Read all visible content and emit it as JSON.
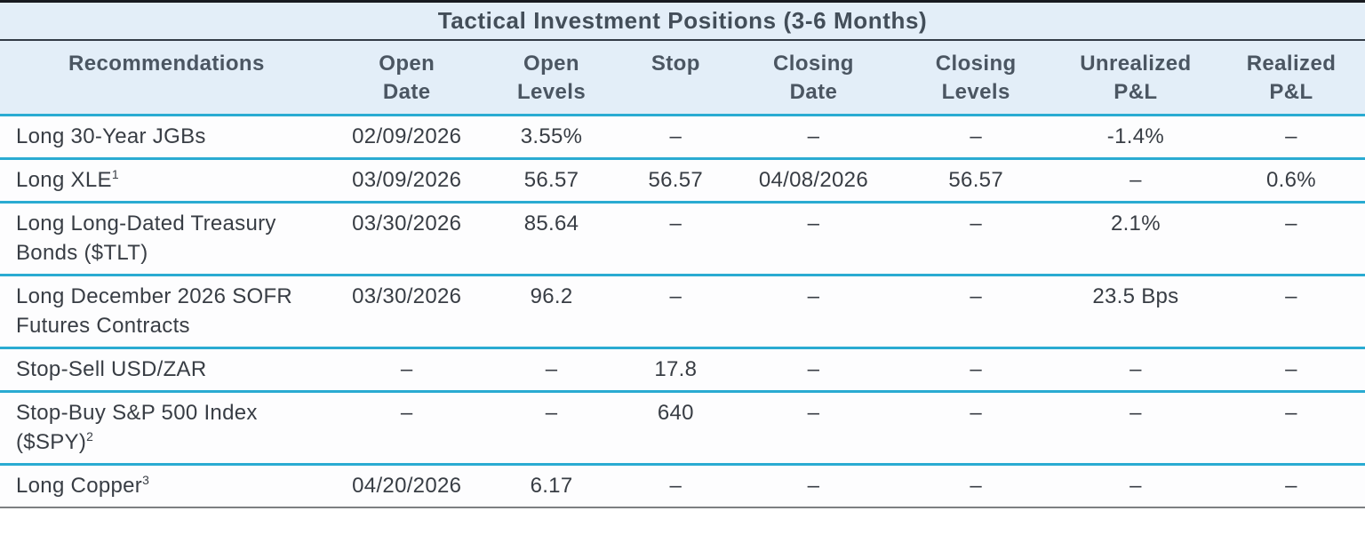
{
  "title": "Tactical Investment Positions (3-6 Months)",
  "columns": [
    {
      "line1": "Recommendations",
      "line2": ""
    },
    {
      "line1": "Open",
      "line2": "Date"
    },
    {
      "line1": "Open",
      "line2": "Levels"
    },
    {
      "line1": "Stop",
      "line2": ""
    },
    {
      "line1": "Closing",
      "line2": "Date"
    },
    {
      "line1": "Closing",
      "line2": "Levels"
    },
    {
      "line1": "Unrealized",
      "line2": "P&L"
    },
    {
      "line1": "Realized",
      "line2": "P&L"
    }
  ],
  "rows": [
    {
      "recommendation": "Long 30-Year JGBs",
      "footnote": "",
      "open_date": "02/09/2026",
      "open_levels": "3.55%",
      "stop": "–",
      "closing_date": "–",
      "closing_levels": "–",
      "unrealized_pnl": "-1.4%",
      "realized_pnl": "–"
    },
    {
      "recommendation": "Long XLE",
      "footnote": "1",
      "open_date": "03/09/2026",
      "open_levels": "56.57",
      "stop": "56.57",
      "closing_date": "04/08/2026",
      "closing_levels": "56.57",
      "unrealized_pnl": "–",
      "realized_pnl": "0.6%"
    },
    {
      "recommendation": "Long Long-Dated Treasury Bonds ($TLT)",
      "footnote": "",
      "open_date": "03/30/2026",
      "open_levels": "85.64",
      "stop": "–",
      "closing_date": "–",
      "closing_levels": "–",
      "unrealized_pnl": "2.1%",
      "realized_pnl": "–"
    },
    {
      "recommendation": "Long December 2026 SOFR Futures Contracts",
      "footnote": "",
      "open_date": "03/30/2026",
      "open_levels": "96.2",
      "stop": "–",
      "closing_date": "–",
      "closing_levels": "–",
      "unrealized_pnl": "23.5 Bps",
      "realized_pnl": "–"
    },
    {
      "recommendation": "Stop-Sell USD/ZAR",
      "footnote": "",
      "open_date": "–",
      "open_levels": "–",
      "stop": "17.8",
      "closing_date": "–",
      "closing_levels": "–",
      "unrealized_pnl": "–",
      "realized_pnl": "–"
    },
    {
      "recommendation": "Stop-Buy S&P 500 Index ($SPY)",
      "footnote": "2",
      "open_date": "–",
      "open_levels": "–",
      "stop": "640",
      "closing_date": "–",
      "closing_levels": "–",
      "unrealized_pnl": "–",
      "realized_pnl": "–"
    },
    {
      "recommendation": "Long Copper",
      "footnote": "3",
      "open_date": "04/20/2026",
      "open_levels": "6.17",
      "stop": "–",
      "closing_date": "–",
      "closing_levels": "–",
      "unrealized_pnl": "–",
      "realized_pnl": "–"
    }
  ],
  "colors": {
    "header_background": "#e3eef8",
    "row_separator_cyan": "#2aabd2",
    "top_border_dark": "#171a20",
    "title_divider_dark": "#333b46",
    "bottom_border_gray": "#7d7f81",
    "header_text": "#4b5662",
    "body_text": "#383d44"
  }
}
